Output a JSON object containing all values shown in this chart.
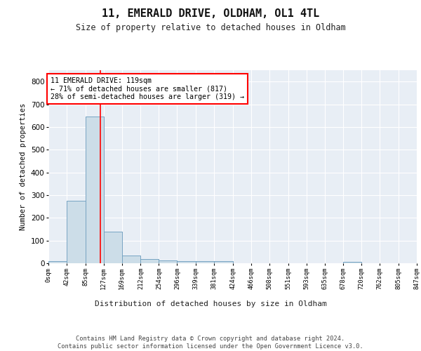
{
  "title": "11, EMERALD DRIVE, OLDHAM, OL1 4TL",
  "subtitle": "Size of property relative to detached houses in Oldham",
  "xlabel": "Distribution of detached houses by size in Oldham",
  "ylabel": "Number of detached properties",
  "bar_color": "#ccdde8",
  "bar_edge_color": "#6699bb",
  "bg_color": "#e8eef5",
  "grid_color": "#ffffff",
  "annotation_text": "11 EMERALD DRIVE: 119sqm\n← 71% of detached houses are smaller (817)\n28% of semi-detached houses are larger (319) →",
  "property_line_x": 119,
  "bin_edges": [
    0,
    42,
    85,
    127,
    169,
    212,
    254,
    296,
    339,
    381,
    424,
    466,
    508,
    551,
    593,
    635,
    678,
    720,
    762,
    805,
    847
  ],
  "bar_heights": [
    8,
    275,
    645,
    138,
    35,
    18,
    12,
    10,
    10,
    8,
    0,
    0,
    0,
    0,
    0,
    0,
    5,
    0,
    0,
    0
  ],
  "ylim": [
    0,
    850
  ],
  "yticks": [
    0,
    100,
    200,
    300,
    400,
    500,
    600,
    700,
    800
  ],
  "footer_text": "Contains HM Land Registry data © Crown copyright and database right 2024.\nContains public sector information licensed under the Open Government Licence v3.0.",
  "tick_labels": [
    "0sqm",
    "42sqm",
    "85sqm",
    "127sqm",
    "169sqm",
    "212sqm",
    "254sqm",
    "296sqm",
    "339sqm",
    "381sqm",
    "424sqm",
    "466sqm",
    "508sqm",
    "551sqm",
    "593sqm",
    "635sqm",
    "678sqm",
    "720sqm",
    "762sqm",
    "805sqm",
    "847sqm"
  ]
}
